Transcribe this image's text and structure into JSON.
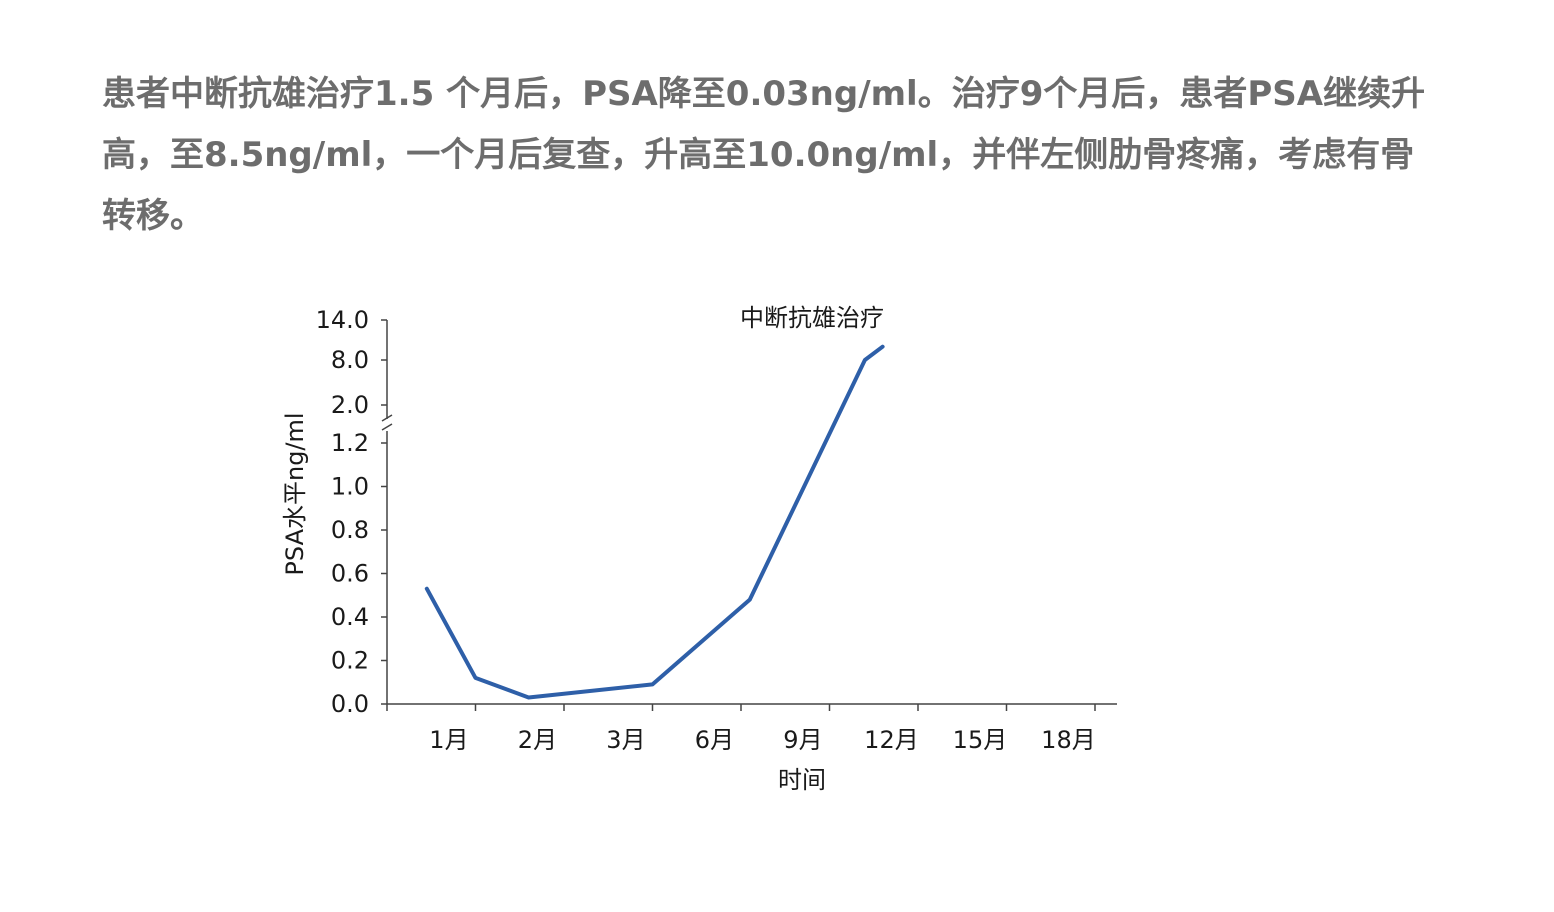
{
  "paragraph": "患者中断抗雄治疗1.5 个月后，PSA降至0.03ng/ml。治疗9个月后，患者PSA继续升高，至8.5ng/ml，一个月后复查，升高至10.0ng/ml，并伴左侧肋骨疼痛，考虑有骨转移。",
  "chart_data": {
    "type": "line",
    "title": "",
    "annotation": "中断抗雄治疗",
    "xlabel": "时间",
    "ylabel": "PSA水平ng/ml",
    "x_ticks": [
      "1月",
      "2月",
      "3月",
      "6月",
      "9月",
      "12月",
      "15月",
      "18月"
    ],
    "y_ticks": [
      "0.0",
      "0.2",
      "0.4",
      "0.6",
      "0.8",
      "1.0",
      "1.2",
      "2.0",
      "8.0",
      "14.0"
    ],
    "y_axis_break": "between 1.2 and 2.0",
    "grid": false,
    "legend": "none",
    "series": [
      {
        "color": "#2e5fa8",
        "points": [
          {
            "x": 0.45,
            "y": 0.53
          },
          {
            "x": 1.0,
            "y": 0.12
          },
          {
            "x": 1.6,
            "y": 0.03
          },
          {
            "x": 3.0,
            "y": 0.09
          },
          {
            "x": 4.1,
            "y": 0.48
          },
          {
            "x": 5.4,
            "y": 8.0
          },
          {
            "x": 5.6,
            "y": 10.0
          }
        ]
      }
    ]
  }
}
